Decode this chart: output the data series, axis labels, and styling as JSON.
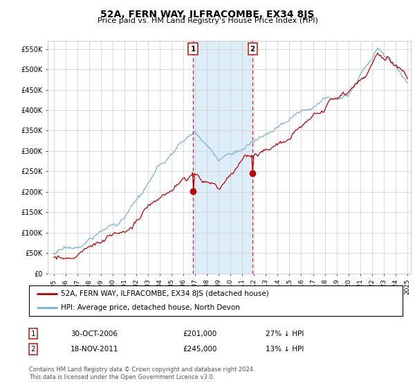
{
  "title": "52A, FERN WAY, ILFRACOMBE, EX34 8JS",
  "subtitle": "Price paid vs. HM Land Registry's House Price Index (HPI)",
  "ylabel_ticks": [
    "£0",
    "£50K",
    "£100K",
    "£150K",
    "£200K",
    "£250K",
    "£300K",
    "£350K",
    "£400K",
    "£450K",
    "£500K",
    "£550K"
  ],
  "ytick_vals": [
    0,
    50000,
    100000,
    150000,
    200000,
    250000,
    300000,
    350000,
    400000,
    450000,
    500000,
    550000
  ],
  "ylim": [
    0,
    570000
  ],
  "sale1_date": 2006.83,
  "sale1_price": 201000,
  "sale1_label": "1",
  "sale2_date": 2011.88,
  "sale2_price": 245000,
  "sale2_label": "2",
  "line1_color": "#bb0000",
  "line2_color": "#7ab0d4",
  "shade_color": "#ddeef8",
  "vline_color": "#cc2222",
  "legend_label1": "52A, FERN WAY, ILFRACOMBE, EX34 8JS (detached house)",
  "legend_label2": "HPI: Average price, detached house, North Devon",
  "table_row1": [
    "1",
    "30-OCT-2006",
    "£201,000",
    "27% ↓ HPI"
  ],
  "table_row2": [
    "2",
    "18-NOV-2011",
    "£245,000",
    "13% ↓ HPI"
  ],
  "footnote": "Contains HM Land Registry data © Crown copyright and database right 2024.\nThis data is licensed under the Open Government Licence v3.0.",
  "background_color": "#ffffff",
  "plot_bg_color": "#ffffff",
  "grid_color": "#cccccc"
}
